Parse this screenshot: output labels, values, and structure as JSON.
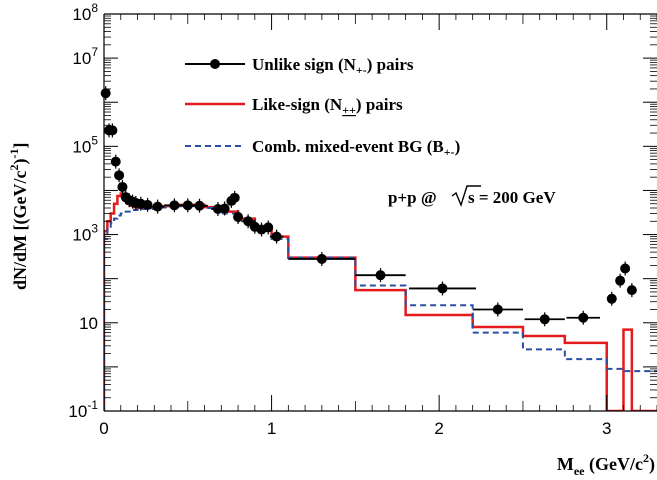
{
  "chart_data": {
    "type": "line",
    "xlabel": {
      "main": "M",
      "sub": "ee",
      "rest": " (GeV/c",
      "sup": "2",
      "close": ")"
    },
    "ylabel": {
      "main": "dN/dM [(GeV/c",
      "sup1": "2",
      "close1": ")",
      "sup2": "-1",
      "close2": "]"
    },
    "xlim": [
      0,
      3.3
    ],
    "ylim": [
      0.1,
      100000000
    ],
    "yscale": "log",
    "x_ticks": [
      {
        "v": 0,
        "label": "0"
      },
      {
        "v": 1,
        "label": "1"
      },
      {
        "v": 2,
        "label": "2"
      },
      {
        "v": 3,
        "label": "3"
      }
    ],
    "y_ticks": [
      {
        "v": 0.1,
        "base": "10",
        "exp": "-1"
      },
      {
        "v": 10,
        "base": "10",
        "exp": ""
      },
      {
        "v": 1000,
        "base": "10",
        "exp": "3"
      },
      {
        "v": 100000,
        "base": "10",
        "exp": "5"
      },
      {
        "v": 10000000,
        "base": "10",
        "exp": "7"
      },
      {
        "v": 100000000,
        "base": "10",
        "exp": "8"
      }
    ],
    "annotation": {
      "pre": "p+p @",
      "root": "s",
      "post": " = 200 GeV"
    },
    "legend": [
      {
        "main": "Unlike sign (N",
        "sub": "+-",
        "post": ") pairs"
      },
      {
        "main": "Like-sign (N",
        "sub": "++",
        "post": ") pairs"
      },
      {
        "main": "Comb. mixed-event BG (B",
        "sub": "+-",
        "post": ")"
      }
    ],
    "series": [
      {
        "kind": "points",
        "color": "#000000",
        "points": [
          {
            "x": 0.01,
            "y": 1600000.0,
            "hw": 0.005
          },
          {
            "x": 0.03,
            "y": 230000.0,
            "hw": 0.005
          },
          {
            "x": 0.05,
            "y": 230000.0,
            "hw": 0.005
          },
          {
            "x": 0.07,
            "y": 45000.0,
            "hw": 0.005
          },
          {
            "x": 0.09,
            "y": 22000.0,
            "hw": 0.005
          },
          {
            "x": 0.11,
            "y": 12000.0,
            "hw": 0.005
          },
          {
            "x": 0.13,
            "y": 7000,
            "hw": 0.005
          },
          {
            "x": 0.15,
            "y": 6000,
            "hw": 0.005
          },
          {
            "x": 0.17,
            "y": 5600,
            "hw": 0.005
          },
          {
            "x": 0.19,
            "y": 5200,
            "hw": 0.005
          },
          {
            "x": 0.22,
            "y": 5000,
            "hw": 0.01
          },
          {
            "x": 0.26,
            "y": 4700,
            "hw": 0.02
          },
          {
            "x": 0.32,
            "y": 4300,
            "hw": 0.04
          },
          {
            "x": 0.42,
            "y": 4600,
            "hw": 0.06
          },
          {
            "x": 0.5,
            "y": 4600,
            "hw": 0.05
          },
          {
            "x": 0.57,
            "y": 4500,
            "hw": 0.05
          },
          {
            "x": 0.68,
            "y": 3800,
            "hw": 0.04
          },
          {
            "x": 0.72,
            "y": 3900,
            "hw": 0.02
          },
          {
            "x": 0.76,
            "y": 5800,
            "hw": 0.02
          },
          {
            "x": 0.78,
            "y": 6800,
            "hw": 0.02
          },
          {
            "x": 0.8,
            "y": 2500,
            "hw": 0.02
          },
          {
            "x": 0.86,
            "y": 2000,
            "hw": 0.04
          },
          {
            "x": 0.9,
            "y": 1500,
            "hw": 0.03
          },
          {
            "x": 0.94,
            "y": 1300,
            "hw": 0.02
          },
          {
            "x": 0.98,
            "y": 1450,
            "hw": 0.02
          },
          {
            "x": 1.03,
            "y": 900,
            "hw": 0.04
          },
          {
            "x": 1.3,
            "y": 280,
            "hw": 0.2
          },
          {
            "x": 1.65,
            "y": 120,
            "hw": 0.15
          },
          {
            "x": 2.02,
            "y": 60,
            "hw": 0.2
          },
          {
            "x": 2.35,
            "y": 20,
            "hw": 0.15
          },
          {
            "x": 2.63,
            "y": 12,
            "hw": 0.12
          },
          {
            "x": 2.86,
            "y": 13,
            "hw": 0.1
          },
          {
            "x": 3.03,
            "y": 35,
            "hw": 0.02
          },
          {
            "x": 3.08,
            "y": 90,
            "hw": 0.02
          },
          {
            "x": 3.11,
            "y": 170,
            "hw": 0.02
          },
          {
            "x": 3.15,
            "y": 55,
            "hw": 0.02
          }
        ]
      },
      {
        "kind": "step",
        "color": "#e41a1c",
        "dash": "none",
        "edges": [
          0,
          0.02,
          0.04,
          0.06,
          0.08,
          0.1,
          0.12,
          0.14,
          0.16,
          0.18,
          0.2,
          0.3,
          0.45,
          0.6,
          0.7,
          0.8,
          0.9,
          1.0,
          1.1,
          1.5,
          1.8,
          2.2,
          2.5,
          2.75,
          3.0,
          3.1,
          3.15,
          3.3
        ],
        "values": [
          1200,
          2000,
          3000,
          5000,
          7500,
          8500,
          6500,
          5000,
          4500,
          4200,
          4000,
          4400,
          4700,
          4200,
          3300,
          2300,
          1500,
          900,
          300,
          55,
          15,
          8,
          5,
          3.5,
          0.1,
          7,
          0.1
        ]
      },
      {
        "kind": "step",
        "color": "#2b4fa2",
        "dash": "6,4",
        "edges": [
          0,
          0.02,
          0.04,
          0.06,
          0.08,
          0.1,
          0.12,
          0.16,
          0.2,
          0.3,
          0.45,
          0.6,
          0.7,
          0.8,
          0.9,
          1.0,
          1.1,
          1.5,
          1.8,
          2.2,
          2.5,
          2.75,
          3.0,
          3.1,
          3.3
        ],
        "values": [
          800,
          1300,
          1800,
          2300,
          2700,
          3000,
          3300,
          3600,
          3800,
          4100,
          4400,
          4000,
          3000,
          2000,
          1300,
          800,
          300,
          70,
          25,
          6,
          2.5,
          1.5,
          0.9,
          0.8
        ]
      }
    ]
  }
}
